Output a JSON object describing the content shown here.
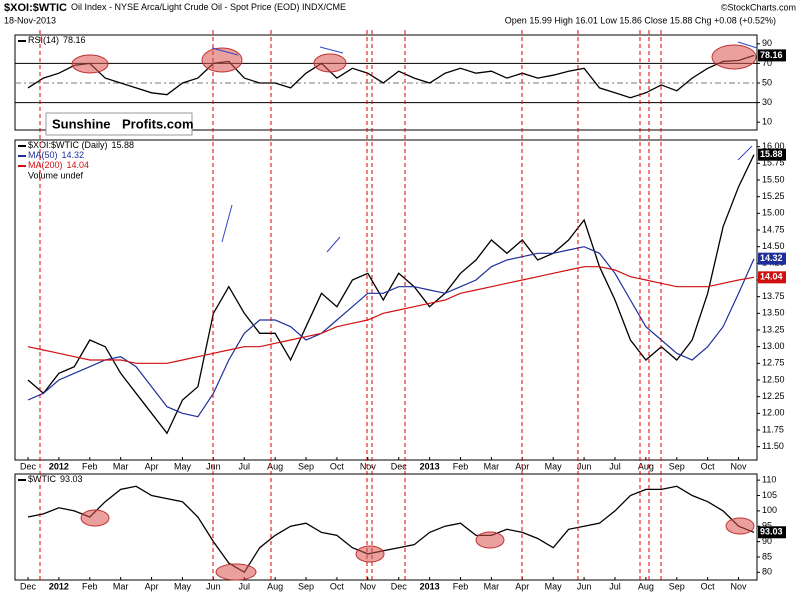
{
  "header": {
    "title": "$XOI:$WTIC",
    "subtitle": "Oil Index - NYSE Arca/Light Crude Oil - Spot Price (EOD) INDX/CME",
    "date": "18-Nov-2013",
    "quote": "Open 15.99 High 16.01 Low 15.86 Close 15.88 Chg +0.08 (+0.52%)",
    "credit": "©StockCharts.com",
    "logo": [
      "Sunshine",
      "Profits.com"
    ],
    "volume_note": "Volume undef"
  },
  "chart_data": [
    {
      "type": "line",
      "ylim": [
        2,
        99
      ],
      "yticks": [
        10,
        30,
        50,
        70,
        90
      ],
      "series": [
        {
          "name": "RSI(14)",
          "color": "#000000",
          "values": [
            45,
            55,
            60,
            68,
            70,
            55,
            50,
            45,
            40,
            38,
            50,
            55,
            70,
            72,
            55,
            50,
            50,
            45,
            60,
            70,
            55,
            65,
            60,
            50,
            62,
            55,
            50,
            60,
            65,
            60,
            62,
            55,
            60,
            55,
            58,
            62,
            65,
            45,
            40,
            35,
            40,
            48,
            42,
            55,
            65,
            72,
            73,
            78.16
          ]
        }
      ]
    },
    {
      "type": "line",
      "ylim": [
        11.3,
        16.1
      ],
      "yticks": [
        {
          "value": 11.5,
          "label": "11.50"
        },
        {
          "value": 11.75,
          "label": "11.75"
        },
        {
          "value": 12,
          "label": "12.00"
        },
        {
          "value": 12.25,
          "label": "12.25"
        },
        {
          "value": 12.5,
          "label": "12.50"
        },
        {
          "value": 12.75,
          "label": "12.75"
        },
        {
          "value": 13,
          "label": "13.00"
        },
        {
          "value": 13.25,
          "label": "13.25"
        },
        {
          "value": 13.5,
          "label": "13.50"
        },
        {
          "value": 13.75,
          "label": "13.75"
        },
        {
          "value": 14,
          "label": "14.00"
        },
        {
          "value": 14.25,
          "label": "14.25"
        },
        {
          "value": 14.5,
          "label": "14.50"
        },
        {
          "value": 14.75,
          "label": "14.75"
        },
        {
          "value": 15,
          "label": "15.00"
        },
        {
          "value": 15.25,
          "label": "15.25"
        },
        {
          "value": 15.5,
          "label": "15.50"
        },
        {
          "value": 15.75,
          "label": "15.75"
        },
        {
          "value": 16,
          "label": "16.00"
        }
      ],
      "categories": [
        "Dec",
        null,
        "2012",
        null,
        "Feb",
        null,
        "Mar",
        null,
        "Apr",
        null,
        "May",
        null,
        "Jun",
        null,
        "Jul",
        null,
        "Aug",
        null,
        "Sep",
        null,
        "Oct",
        null,
        "Nov",
        null,
        "Dec",
        null,
        "2013",
        null,
        "Feb",
        null,
        "Mar",
        null,
        "Apr",
        null,
        "May",
        null,
        "Jun",
        null,
        "Jul",
        null,
        "Aug",
        null,
        "Sep",
        null,
        "Oct",
        null,
        "Nov",
        null
      ],
      "series": [
        {
          "name": "$XOI:$WTIC (Daily)",
          "color": "#000000",
          "values": [
            12.5,
            12.3,
            12.6,
            12.7,
            13.1,
            13.0,
            12.6,
            12.3,
            12.0,
            11.7,
            12.2,
            12.4,
            13.5,
            13.9,
            13.5,
            13.2,
            13.2,
            12.8,
            13.3,
            13.8,
            13.6,
            14.0,
            14.1,
            13.7,
            14.1,
            13.9,
            13.6,
            13.8,
            14.1,
            14.3,
            14.6,
            14.4,
            14.6,
            14.3,
            14.4,
            14.6,
            14.9,
            14.2,
            13.7,
            13.1,
            12.8,
            13.0,
            12.8,
            13.1,
            13.8,
            14.8,
            15.4,
            15.88
          ]
        },
        {
          "name": "MA(50)",
          "color": "#1f2f9a",
          "values": [
            12.2,
            12.3,
            12.5,
            12.6,
            12.7,
            12.8,
            12.85,
            12.7,
            12.4,
            12.1,
            12.0,
            11.95,
            12.3,
            12.8,
            13.2,
            13.4,
            13.4,
            13.3,
            13.1,
            13.2,
            13.4,
            13.6,
            13.8,
            13.8,
            13.9,
            13.9,
            13.85,
            13.8,
            13.9,
            14.0,
            14.2,
            14.3,
            14.35,
            14.4,
            14.4,
            14.45,
            14.5,
            14.4,
            14.1,
            13.7,
            13.3,
            13.1,
            12.9,
            12.8,
            13.0,
            13.3,
            13.8,
            14.32
          ]
        },
        {
          "name": "MA(200)",
          "color": "#d01010",
          "values": [
            13.0,
            12.95,
            12.9,
            12.85,
            12.8,
            12.8,
            12.8,
            12.75,
            12.75,
            12.75,
            12.8,
            12.85,
            12.9,
            12.95,
            13.0,
            13.0,
            13.05,
            13.1,
            13.15,
            13.2,
            13.3,
            13.35,
            13.4,
            13.5,
            13.55,
            13.6,
            13.65,
            13.7,
            13.8,
            13.85,
            13.9,
            13.95,
            14.0,
            14.05,
            14.1,
            14.15,
            14.2,
            14.2,
            14.15,
            14.05,
            14.0,
            13.95,
            13.9,
            13.9,
            13.9,
            13.95,
            14.0,
            14.04
          ]
        }
      ]
    },
    {
      "type": "line",
      "ylim": [
        77.5,
        112
      ],
      "yticks": [
        80,
        85,
        90,
        95,
        100,
        105,
        110
      ],
      "categories": [
        "Dec",
        null,
        "2012",
        null,
        "Feb",
        null,
        "Mar",
        null,
        "Apr",
        null,
        "May",
        null,
        "Jun",
        null,
        "Jul",
        null,
        "Aug",
        null,
        "Sep",
        null,
        "Oct",
        null,
        "Nov",
        null,
        "Dec",
        null,
        "2013",
        null,
        "Feb",
        null,
        "Mar",
        null,
        "Apr",
        null,
        "May",
        null,
        "Jun",
        null,
        "Jul",
        null,
        "Aug",
        null,
        "Sep",
        null,
        "Oct",
        null,
        "Nov",
        null
      ],
      "series": [
        {
          "name": "$WTIC",
          "color": "#000000",
          "values": [
            98,
            99,
            101,
            100,
            98,
            103,
            107,
            108,
            105,
            104,
            103,
            98,
            90,
            83,
            80,
            88,
            92,
            95,
            96,
            93,
            92,
            88,
            86,
            87,
            88,
            89,
            93,
            95,
            96,
            92,
            92,
            94,
            93,
            91,
            88,
            94,
            95,
            96,
            100,
            105,
            107,
            107,
            108,
            105,
            103,
            100,
            95,
            93.03
          ]
        }
      ]
    }
  ]
}
